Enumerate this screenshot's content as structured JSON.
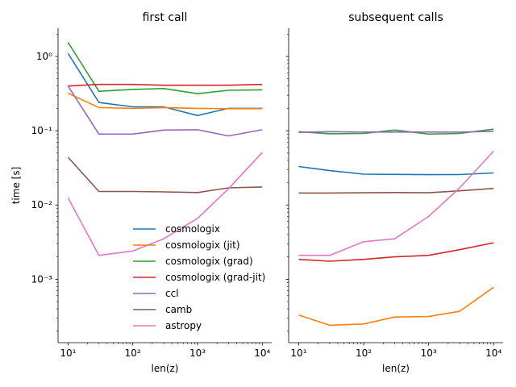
{
  "chart_data": [
    {
      "type": "line",
      "title": "first call",
      "xlabel": "len(z)",
      "ylabel": "time [s]",
      "xscale": "log",
      "yscale": "log",
      "xlim": [
        7,
        14000
      ],
      "ylim": [
        0.00014,
        2.4
      ],
      "x": [
        10,
        30,
        100,
        300,
        1000,
        3000,
        10000
      ],
      "xticks": [
        {
          "value": 10,
          "label": "10¹"
        },
        {
          "value": 100,
          "label": "10²"
        },
        {
          "value": 1000,
          "label": "10³"
        },
        {
          "value": 10000,
          "label": "10⁴"
        }
      ],
      "yticks": [
        {
          "value": 0.001,
          "label": "10⁻³"
        },
        {
          "value": 0.01,
          "label": "10⁻²"
        },
        {
          "value": 0.1,
          "label": "10⁻¹"
        },
        {
          "value": 1,
          "label": "10⁰"
        }
      ],
      "legend": "lower-center",
      "series": [
        {
          "name": "cosmologix",
          "color": "#1f77b4",
          "values": [
            1.1,
            0.24,
            0.21,
            0.21,
            0.16,
            0.2,
            0.2
          ]
        },
        {
          "name": "cosmologix (jit)",
          "color": "#ff7f0e",
          "values": [
            0.32,
            0.205,
            0.2,
            0.205,
            0.2,
            0.198,
            0.198
          ]
        },
        {
          "name": "cosmologix (grad)",
          "color": "#2ca02c",
          "values": [
            1.55,
            0.34,
            0.36,
            0.37,
            0.315,
            0.35,
            0.355
          ]
        },
        {
          "name": "cosmologix (grad-jit)",
          "color": "#d62728",
          "values": [
            0.4,
            0.42,
            0.42,
            0.41,
            0.41,
            0.41,
            0.42
          ]
        },
        {
          "name": "ccl",
          "color": "#9467bd",
          "values": [
            0.4,
            0.09,
            0.09,
            0.102,
            0.103,
            0.085,
            0.103
          ]
        },
        {
          "name": "camb",
          "color": "#8c564b",
          "values": [
            0.044,
            0.0152,
            0.0152,
            0.015,
            0.0147,
            0.017,
            0.0175
          ]
        },
        {
          "name": "astropy",
          "color": "#e377c2",
          "values": [
            0.0125,
            0.0021,
            0.0024,
            0.0035,
            0.0066,
            0.0165,
            0.051
          ]
        }
      ]
    },
    {
      "type": "line",
      "title": "subsequent  calls",
      "xlabel": "len(z)",
      "ylabel": "",
      "xscale": "log",
      "yscale": "log",
      "xlim": [
        7,
        14000
      ],
      "ylim": [
        0.00014,
        2.4
      ],
      "x": [
        10,
        30,
        100,
        300,
        1000,
        3000,
        10000
      ],
      "xticks": [
        {
          "value": 10,
          "label": "10¹"
        },
        {
          "value": 100,
          "label": "10²"
        },
        {
          "value": 1000,
          "label": "10³"
        },
        {
          "value": 10000,
          "label": "10⁴"
        }
      ],
      "series": [
        {
          "name": "cosmologix",
          "color": "#1f77b4",
          "values": [
            0.033,
            0.029,
            0.026,
            0.0258,
            0.0256,
            0.0257,
            0.027
          ]
        },
        {
          "name": "cosmologix (jit)",
          "color": "#ff7f0e",
          "values": [
            0.00033,
            0.00024,
            0.00025,
            0.00031,
            0.000315,
            0.00037,
            0.00078
          ]
        },
        {
          "name": "cosmologix (grad)",
          "color": "#2ca02c",
          "values": [
            0.097,
            0.091,
            0.092,
            0.102,
            0.09,
            0.092,
            0.105
          ]
        },
        {
          "name": "cosmologix (grad-jit)",
          "color": "#d62728",
          "values": [
            0.00185,
            0.00175,
            0.00185,
            0.002,
            0.0021,
            0.0025,
            0.0031
          ]
        },
        {
          "name": "ccl",
          "color": "#9467bd",
          "values": [
            0.095,
            0.097,
            0.096,
            0.096,
            0.096,
            0.096,
            0.098
          ]
        },
        {
          "name": "camb",
          "color": "#8c564b",
          "values": [
            0.0145,
            0.0145,
            0.0146,
            0.0147,
            0.0146,
            0.0155,
            0.0167
          ]
        },
        {
          "name": "astropy",
          "color": "#e377c2",
          "values": [
            0.0021,
            0.0021,
            0.0032,
            0.0035,
            0.007,
            0.017,
            0.053
          ]
        }
      ]
    }
  ]
}
